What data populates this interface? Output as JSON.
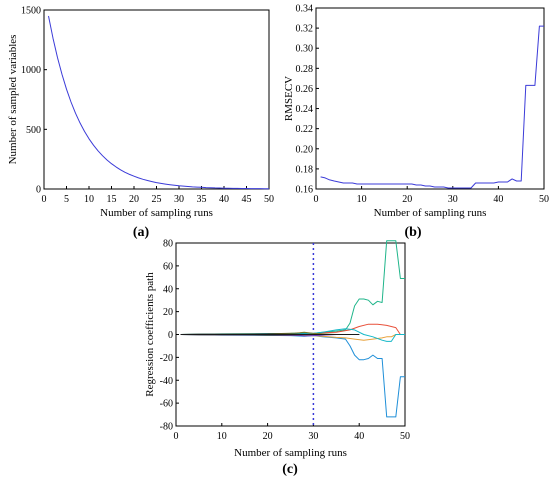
{
  "chart_data": [
    {
      "panel": "(a)",
      "type": "line",
      "xlabel": "Number of sampling runs",
      "ylabel": "Number of sampled variables",
      "xlim": [
        0,
        50
      ],
      "ylim": [
        0,
        1500
      ],
      "xticks": [
        "0",
        "5",
        "10",
        "15",
        "20",
        "25",
        "30",
        "35",
        "40",
        "45",
        "50"
      ],
      "yticks": [
        "0",
        "500",
        "1000",
        "1500"
      ],
      "color": "#3b3bd8",
      "grid": false,
      "series": [
        {
          "x": [
            1,
            2,
            3,
            4,
            5,
            6,
            7,
            8,
            9,
            10,
            11,
            12,
            13,
            14,
            15,
            16,
            17,
            18,
            19,
            20,
            21,
            22,
            23,
            24,
            25,
            26,
            27,
            28,
            29,
            30,
            31,
            32,
            33,
            34,
            35,
            36,
            37,
            38,
            39,
            40,
            41,
            42,
            43,
            44,
            45,
            46,
            47,
            48,
            49,
            50
          ],
          "values": [
            1450,
            1264,
            1101,
            960,
            836,
            729,
            635,
            554,
            483,
            421,
            367,
            320,
            279,
            243,
            212,
            185,
            161,
            140,
            122,
            107,
            93,
            81,
            71,
            62,
            54,
            47,
            41,
            36,
            31,
            27,
            24,
            21,
            18,
            16,
            14,
            12,
            11,
            9,
            8,
            7,
            6,
            5,
            5,
            4,
            4,
            3,
            3,
            3,
            2,
            2
          ]
        }
      ]
    },
    {
      "panel": "(b)",
      "type": "line",
      "xlabel": "Number of sampling runs",
      "ylabel": "RMSECV",
      "xlim": [
        0,
        50
      ],
      "ylim": [
        0.16,
        0.34
      ],
      "xticks": [
        "0",
        "10",
        "20",
        "30",
        "40",
        "50"
      ],
      "yticks": [
        "0.16",
        "0.18",
        "0.20",
        "0.22",
        "0.24",
        "0.26",
        "0.28",
        "0.30",
        "0.32",
        "0.34"
      ],
      "color": "#3b3bd8",
      "grid": false,
      "series": [
        {
          "x": [
            1,
            2,
            3,
            4,
            5,
            6,
            7,
            8,
            9,
            10,
            11,
            12,
            13,
            14,
            15,
            16,
            17,
            18,
            19,
            20,
            21,
            22,
            23,
            24,
            25,
            26,
            27,
            28,
            29,
            30,
            31,
            32,
            33,
            34,
            35,
            36,
            37,
            38,
            39,
            40,
            41,
            42,
            43,
            44,
            45,
            46,
            47,
            48,
            49,
            50
          ],
          "values": [
            0.172,
            0.171,
            0.169,
            0.168,
            0.167,
            0.166,
            0.166,
            0.166,
            0.165,
            0.165,
            0.165,
            0.165,
            0.165,
            0.165,
            0.165,
            0.165,
            0.165,
            0.165,
            0.165,
            0.165,
            0.165,
            0.164,
            0.164,
            0.163,
            0.163,
            0.162,
            0.162,
            0.162,
            0.161,
            0.161,
            0.161,
            0.161,
            0.161,
            0.161,
            0.166,
            0.166,
            0.166,
            0.166,
            0.166,
            0.167,
            0.167,
            0.167,
            0.17,
            0.168,
            0.168,
            0.263,
            0.263,
            0.263,
            0.322,
            0.322
          ]
        }
      ]
    },
    {
      "panel": "(c)",
      "type": "line",
      "xlabel": "Number of sampling runs",
      "ylabel": "Regression coefficients path",
      "xlim": [
        0,
        50
      ],
      "ylim": [
        -80,
        80
      ],
      "xticks": [
        "0",
        "10",
        "20",
        "30",
        "40",
        "50"
      ],
      "yticks": [
        "-80",
        "-60",
        "-40",
        "-20",
        "0",
        "20",
        "40",
        "60",
        "80"
      ],
      "vline_x": 30,
      "grid": false,
      "series": [
        {
          "color": "#1fb58a",
          "x": [
            1,
            5,
            10,
            15,
            20,
            25,
            28,
            30,
            32,
            35,
            36,
            37,
            38,
            39,
            40,
            41,
            42,
            43,
            44,
            45,
            46,
            47,
            48,
            49,
            50
          ],
          "values": [
            0,
            0.3,
            0.5,
            0.6,
            0.8,
            1.0,
            1.5,
            1.0,
            2.0,
            3.0,
            3.5,
            4.0,
            10.0,
            25.0,
            31.0,
            31.0,
            30.0,
            26.0,
            29.0,
            28.0,
            82.0,
            82.0,
            82.0,
            49.0,
            49.0
          ]
        },
        {
          "color": "#1f8fd8",
          "x": [
            1,
            5,
            10,
            15,
            20,
            25,
            28,
            30,
            32,
            35,
            36,
            37,
            38,
            39,
            40,
            41,
            42,
            43,
            44,
            45,
            46,
            47,
            48,
            49,
            50
          ],
          "values": [
            0,
            -0.3,
            -0.5,
            -0.6,
            -0.8,
            -1.0,
            -1.5,
            -1.0,
            -2.0,
            -3.0,
            -3.5,
            -4.0,
            -10.0,
            -18.0,
            -22.0,
            -22.0,
            -21.0,
            -18.0,
            -21.0,
            -21.0,
            -72.0,
            -72.0,
            -72.0,
            -37.0,
            -37.0
          ]
        },
        {
          "color": "#e8503a",
          "x": [
            1,
            10,
            20,
            28,
            30,
            32,
            35,
            38,
            40,
            42,
            44,
            46,
            48,
            49,
            50
          ],
          "values": [
            0,
            0.2,
            0.5,
            0.8,
            1.0,
            1.5,
            2.0,
            4.0,
            7.0,
            9.0,
            9.0,
            8.0,
            6.0,
            0,
            0
          ]
        },
        {
          "color": "#e8a13a",
          "x": [
            1,
            10,
            20,
            28,
            30,
            32,
            35,
            37,
            39,
            41,
            43,
            45,
            46,
            47,
            48,
            50
          ],
          "values": [
            0,
            -0.3,
            -0.5,
            -0.8,
            -1.0,
            -1.5,
            -2.5,
            -3.0,
            -4.0,
            -5.0,
            -4.0,
            -3.0,
            -2.0,
            -2.0,
            0,
            0
          ]
        },
        {
          "color": "#14b8c8",
          "x": [
            1,
            10,
            20,
            28,
            30,
            32,
            35,
            37,
            39,
            41,
            43,
            45,
            46,
            47,
            48,
            50
          ],
          "values": [
            0,
            0.4,
            0.6,
            0.9,
            1.0,
            2.0,
            4.0,
            5.0,
            4.0,
            0,
            -2.0,
            -5.0,
            -6.0,
            -6.0,
            0,
            0
          ]
        },
        {
          "color": "#7a7a2a",
          "x": [
            1,
            10,
            20,
            26,
            27,
            28,
            30,
            32,
            35,
            38,
            40
          ],
          "values": [
            0,
            0.3,
            0.5,
            1.2,
            1.5,
            2.0,
            1.0,
            0.5,
            0,
            0,
            0
          ]
        },
        {
          "color": "#6a3ac8",
          "x": [
            1,
            10,
            20,
            27,
            28,
            30,
            32,
            35,
            38,
            40
          ],
          "values": [
            0,
            -0.2,
            -0.4,
            -0.8,
            -1.2,
            -1.0,
            -0.5,
            0,
            0,
            0
          ]
        },
        {
          "color": "#1a1a1a",
          "x": [
            1,
            5,
            10,
            15,
            20,
            25,
            30,
            35,
            40
          ],
          "values": [
            0,
            -0.2,
            -0.3,
            -0.3,
            -0.4,
            -0.3,
            0,
            0,
            0
          ]
        },
        {
          "color": "#1a1a1a",
          "x": [
            1,
            5,
            10,
            15,
            20,
            25,
            30,
            35,
            40
          ],
          "values": [
            0,
            0.2,
            0.3,
            0.3,
            0.4,
            0.3,
            0,
            0,
            0
          ]
        }
      ]
    }
  ]
}
